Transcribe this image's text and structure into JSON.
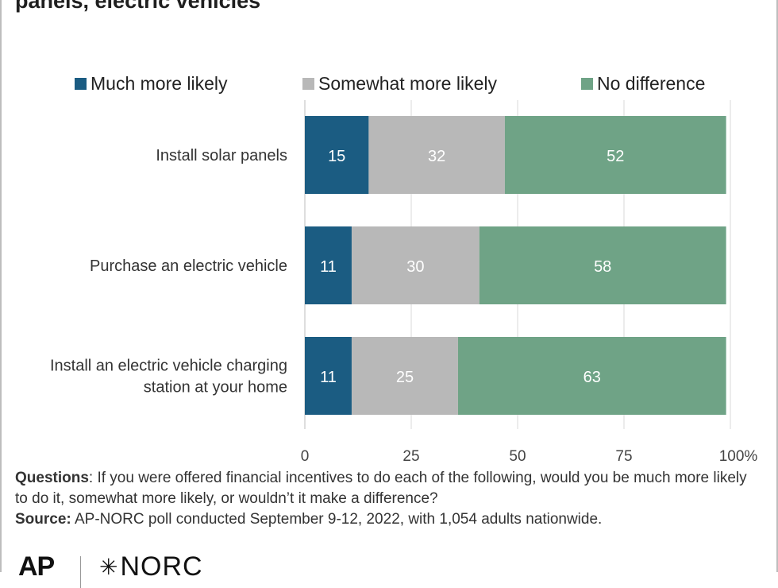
{
  "title": "panels, electric vehicles",
  "colors": {
    "much": "#1b5c82",
    "somewhat": "#b8b8b8",
    "nodiff": "#6fa386",
    "grid": "#d9d9d9"
  },
  "chart_data": {
    "type": "bar",
    "orientation": "horizontal",
    "stacked": true,
    "categories": [
      "Install solar panels",
      "Purchase an electric vehicle",
      "Install an electric vehicle charging station at your home"
    ],
    "series": [
      {
        "name": "Much more likely",
        "values": [
          15,
          11,
          11
        ],
        "color": "#1b5c82"
      },
      {
        "name": "Somewhat more likely",
        "values": [
          32,
          30,
          25
        ],
        "color": "#b8b8b8"
      },
      {
        "name": "No difference",
        "values": [
          52,
          58,
          63
        ],
        "color": "#6fa386"
      }
    ],
    "xlim": [
      0,
      100
    ],
    "xticks": [
      "0",
      "25",
      "50",
      "75",
      "100%"
    ],
    "grid": true,
    "legend_position": "top"
  },
  "footnote": {
    "questions_label": "Questions",
    "questions_text": ": If you were offered financial incentives to do each of the following, would you be much more likely to do it, somewhat more likely, or wouldn’t it make a difference?",
    "source_label": "Source:",
    "source_text": " AP-NORC poll conducted September 9-12, 2022, with 1,054 adults nationwide."
  },
  "logos": {
    "ap": "AP",
    "norc_star": "✳",
    "norc": "NORC"
  }
}
